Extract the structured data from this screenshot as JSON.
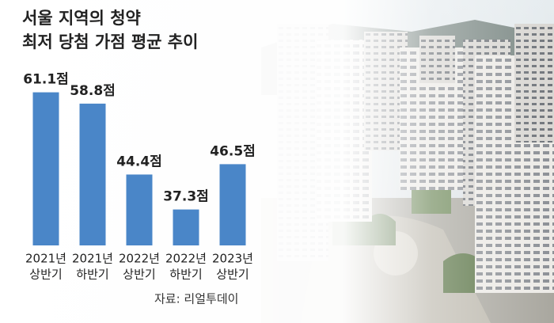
{
  "chart_data": {
    "type": "bar",
    "title": [
      "서울 지역의 청약",
      "최저 당첨 가점 평균 추이"
    ],
    "categories": [
      [
        "2021년",
        "상반기"
      ],
      [
        "2021년",
        "하반기"
      ],
      [
        "2022년",
        "상반기"
      ],
      [
        "2022년",
        "하반기"
      ],
      [
        "2023년",
        "상반기"
      ]
    ],
    "values": [
      61.1,
      58.8,
      44.4,
      37.3,
      46.5
    ],
    "value_labels": [
      "61.1점",
      "58.8점",
      "44.4점",
      "37.3점",
      "46.5점"
    ],
    "color": "#4a86c8",
    "ylim": [
      30,
      62
    ],
    "source": "자료: 리얼투데이"
  }
}
